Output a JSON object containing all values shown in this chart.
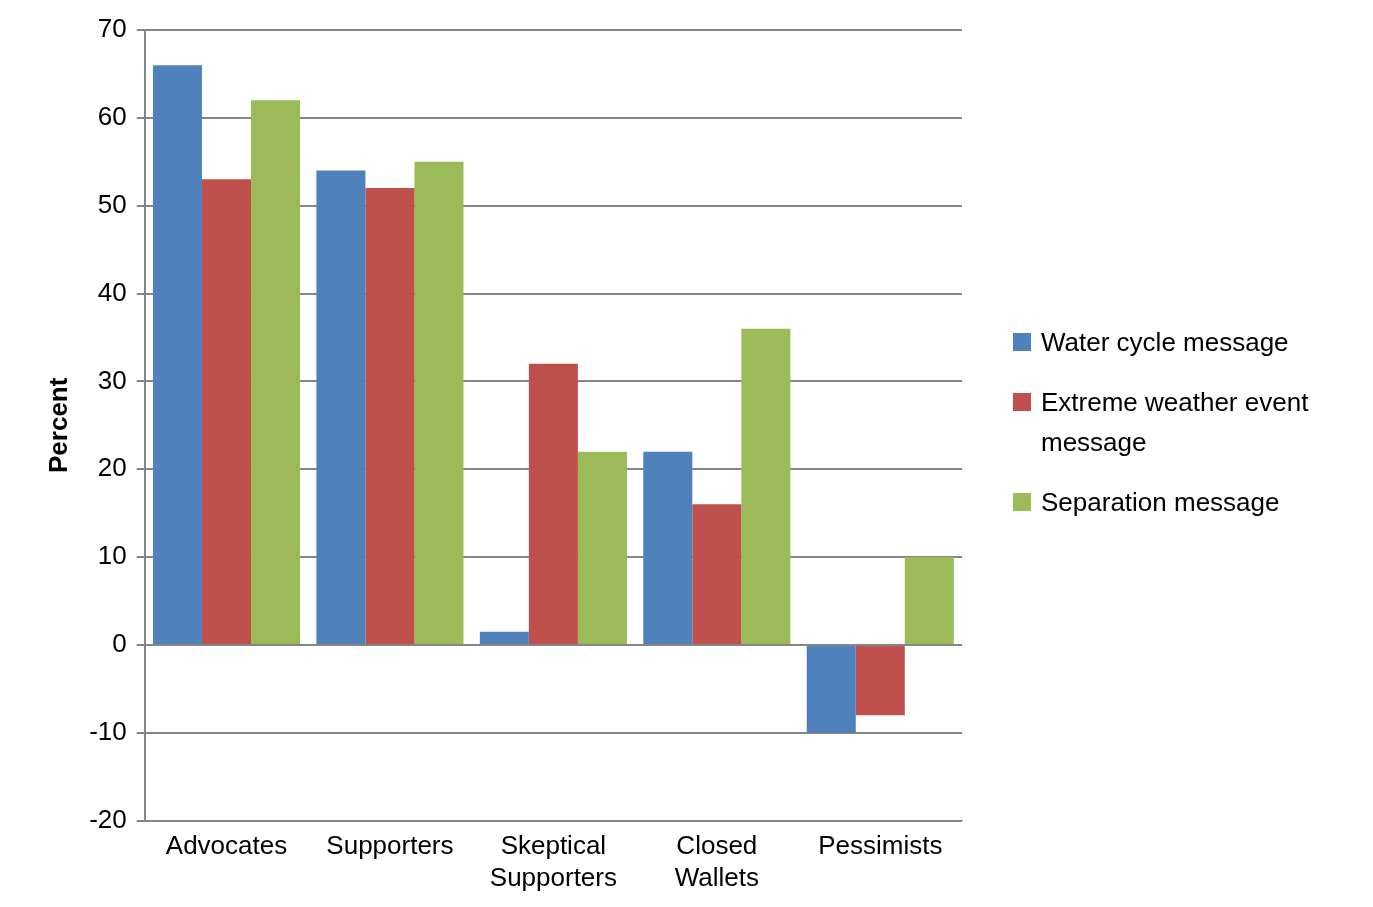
{
  "chart_data": {
    "type": "bar",
    "ylabel": "Percent",
    "categories": [
      "Advocates",
      "Supporters",
      "Skeptical Supporters",
      "Closed Wallets",
      "Pessimists"
    ],
    "series": [
      {
        "name": "Water cycle message",
        "color": "#4f81bd",
        "values": [
          66,
          54,
          1.5,
          22,
          -10
        ]
      },
      {
        "name": "Extreme weather event message",
        "color": "#c0504d",
        "values": [
          53,
          52,
          32,
          16,
          -8
        ]
      },
      {
        "name": "Separation message",
        "color": "#9bbb59",
        "values": [
          62,
          55,
          22,
          36,
          10
        ]
      }
    ],
    "ylim": [
      -20,
      70
    ],
    "yticks": [
      -20,
      -10,
      0,
      10,
      20,
      30,
      40,
      50,
      60,
      70
    ],
    "grid": "y",
    "legend": "right"
  }
}
